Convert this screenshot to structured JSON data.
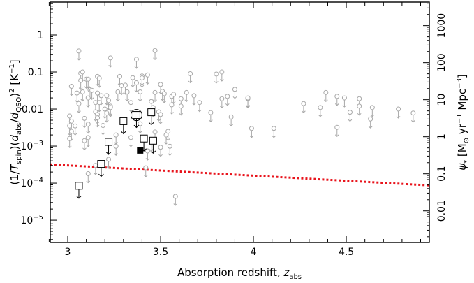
{
  "chart_data": {
    "type": "scatter",
    "title": "",
    "xlabel": [
      {
        "t": "Absorption redshift, "
      },
      {
        "t": "z",
        "s": "it"
      },
      {
        "t": "abs",
        "s": "sub"
      }
    ],
    "ylabel": [
      {
        "t": "(1/"
      },
      {
        "t": "T",
        "s": "it"
      },
      {
        "t": "spin",
        "s": "sub"
      },
      {
        "t": ")("
      },
      {
        "t": "d",
        "s": "it"
      },
      {
        "t": "abs",
        "s": "sub"
      },
      {
        "t": "/"
      },
      {
        "t": "d",
        "s": "it"
      },
      {
        "t": "QSO",
        "s": "sub"
      },
      {
        "t": ")"
      },
      {
        "t": "2",
        "s": "sup"
      },
      {
        "t": "  [K"
      },
      {
        "t": "−1",
        "s": "sup"
      },
      {
        "t": "]"
      }
    ],
    "ylabel_right": [
      {
        "t": "ψ",
        "s": "it"
      },
      {
        "t": "*",
        "s": "sub"
      },
      {
        "t": " [M"
      },
      {
        "t": "⊙",
        "s": "sub"
      },
      {
        "t": " yr"
      },
      {
        "t": "−1",
        "s": "sup"
      },
      {
        "t": " Mpc"
      },
      {
        "t": "−3",
        "s": "sup"
      },
      {
        "t": "]"
      }
    ],
    "xlim": [
      2.906,
      4.947
    ],
    "ylim": [
      2.5e-06,
      7.7
    ],
    "yscale": "log",
    "ylim_right": [
      0.0014,
      4300
    ],
    "yscale_right": "log",
    "grid": false,
    "x_ticks": [
      {
        "v": 3,
        "label": "3"
      },
      {
        "v": 3.5,
        "label": "3.5"
      },
      {
        "v": 4,
        "label": "4"
      },
      {
        "v": 4.5,
        "label": "4.5"
      }
    ],
    "y_ticks": [
      {
        "v": 1,
        "label": "1"
      },
      {
        "v": 0.1,
        "label": "0.1"
      },
      {
        "v": 0.01,
        "label": "0.01"
      },
      {
        "v": 0.001,
        "base": "10",
        "exp": "−3"
      },
      {
        "v": 0.0001,
        "base": "10",
        "exp": "−4"
      },
      {
        "v": 1e-05,
        "base": "10",
        "exp": "−5"
      }
    ],
    "y_ticks_right": [
      {
        "v": 1000,
        "label": "1000"
      },
      {
        "v": 100,
        "label": "100"
      },
      {
        "v": 10,
        "label": "10"
      },
      {
        "v": 1,
        "label": "1"
      },
      {
        "v": 0.1,
        "label": "0.1"
      },
      {
        "v": 0.01,
        "label": "0.01"
      }
    ],
    "right_axis_factor": 560,
    "series": [
      {
        "marker": "open-circle",
        "upper_limit": true,
        "color": "#a8a8a8",
        "points": [
          [
            3.06,
            0.37
          ],
          [
            3.23,
            0.24
          ],
          [
            3.37,
            0.22
          ],
          [
            3.47,
            0.38
          ],
          [
            3.02,
            0.041
          ],
          [
            3.07,
            0.092
          ],
          [
            3.08,
            0.1
          ],
          [
            3.07,
            0.059
          ],
          [
            3.1,
            0.064
          ],
          [
            3.11,
            0.064
          ],
          [
            3.05,
            0.027
          ],
          [
            3.08,
            0.029
          ],
          [
            3.06,
            0.014
          ],
          [
            3.12,
            0.033
          ],
          [
            3.13,
            0.032
          ],
          [
            3.11,
            0.02
          ],
          [
            3.16,
            0.076
          ],
          [
            3.17,
            0.068
          ],
          [
            3.16,
            0.027
          ],
          [
            3.18,
            0.023
          ],
          [
            3.21,
            0.023
          ],
          [
            3.15,
            0.015
          ],
          [
            3.17,
            0.015
          ],
          [
            3.22,
            0.017
          ],
          [
            3.23,
            0.012
          ],
          [
            3.2,
            0.01
          ],
          [
            3.15,
            0.0084
          ],
          [
            3.16,
            0.0071
          ],
          [
            3.16,
            0.0058
          ],
          [
            3.21,
            0.0078
          ],
          [
            3.23,
            0.011
          ],
          [
            3.28,
            0.076
          ],
          [
            3.29,
            0.043
          ],
          [
            3.31,
            0.044
          ],
          [
            3.32,
            0.029
          ],
          [
            3.27,
            0.029
          ],
          [
            3.34,
            0.015
          ],
          [
            3.35,
            0.07
          ],
          [
            3.37,
            0.051
          ],
          [
            3.4,
            0.078
          ],
          [
            3.4,
            0.069
          ],
          [
            3.43,
            0.083
          ],
          [
            3.39,
            0.029
          ],
          [
            3.45,
            0.016
          ],
          [
            3.47,
            0.028
          ],
          [
            3.5,
            0.046
          ],
          [
            3.51,
            0.03
          ],
          [
            3.52,
            0.026
          ],
          [
            3.56,
            0.022
          ],
          [
            3.57,
            0.025
          ],
          [
            3.56,
            0.013
          ],
          [
            3.61,
            0.019
          ],
          [
            3.61,
            0.012
          ],
          [
            3.64,
            0.028
          ],
          [
            3.66,
            0.09
          ],
          [
            3.68,
            0.023
          ],
          [
            3.71,
            0.015
          ],
          [
            3.77,
            0.008
          ],
          [
            3.8,
            0.088
          ],
          [
            3.83,
            0.1
          ],
          [
            3.83,
            0.019
          ],
          [
            3.86,
            0.022
          ],
          [
            3.9,
            0.034
          ],
          [
            3.88,
            0.0061
          ],
          [
            3.97,
            0.019
          ],
          [
            3.01,
            0.0065
          ],
          [
            3.02,
            0.0047
          ],
          [
            3.01,
            0.0035
          ],
          [
            3.02,
            0.0025
          ],
          [
            3.04,
            0.0035
          ],
          [
            3.01,
            0.0016
          ],
          [
            3.09,
            0.0056
          ],
          [
            3.09,
            0.0014
          ],
          [
            3.11,
            0.0039
          ],
          [
            3.11,
            0.0017
          ],
          [
            3.19,
            0.0036
          ],
          [
            3.26,
            0.002
          ],
          [
            3.26,
            0.00099
          ],
          [
            3.22,
            0.00044
          ],
          [
            3.34,
            0.0017
          ],
          [
            3.39,
            0.004
          ],
          [
            3.49,
            0.0084
          ],
          [
            3.5,
            0.0071
          ],
          [
            3.46,
            0.011
          ],
          [
            3.54,
            0.0025
          ],
          [
            3.53,
            0.002
          ],
          [
            3.55,
            0.00099
          ],
          [
            3.5,
            0.00093
          ],
          [
            3.43,
            0.00074
          ],
          [
            3.47,
            0.0024
          ],
          [
            3.45,
            0.0013
          ],
          [
            3.11,
            0.00018
          ],
          [
            3.15,
            0.0003
          ],
          [
            3.42,
            0.00026
          ],
          [
            3.58,
            4.4e-05
          ],
          [
            3.97,
            0.02
          ],
          [
            4.27,
            0.014
          ],
          [
            4.36,
            0.011
          ],
          [
            4.39,
            0.028
          ],
          [
            4.45,
            0.022
          ],
          [
            4.49,
            0.02
          ],
          [
            4.57,
            0.019
          ],
          [
            4.57,
            0.012
          ],
          [
            4.52,
            0.0082
          ],
          [
            4.64,
            0.011
          ],
          [
            4.63,
            0.0054
          ],
          [
            4.78,
            0.01
          ],
          [
            4.86,
            0.0078
          ],
          [
            3.99,
            0.003
          ],
          [
            4.11,
            0.003
          ],
          [
            4.45,
            0.0032
          ]
        ]
      },
      {
        "marker": "open-square",
        "upper_limit": true,
        "color": "#000000",
        "points": [
          [
            3.06,
            8.5e-05
          ],
          [
            3.18,
            0.00033
          ],
          [
            3.22,
            0.0013
          ],
          [
            3.3,
            0.0047
          ],
          [
            3.37,
            0.0069
          ],
          [
            3.45,
            0.0082
          ],
          [
            3.41,
            0.0016
          ],
          [
            3.46,
            0.0014
          ]
        ]
      },
      {
        "marker": "filled-square",
        "upper_limit": false,
        "color": "#000000",
        "points": [
          [
            3.39,
            0.00076
          ]
        ]
      },
      {
        "marker": "large-open-circle",
        "upper_limit": false,
        "color": "#000000",
        "points": [
          [
            3.37,
            0.0069
          ]
        ]
      }
    ],
    "lines": [
      {
        "style": "dotted",
        "color": "#e8141c",
        "points": [
          [
            2.906,
            0.00032
          ],
          [
            4.947,
            8.7e-05
          ]
        ]
      }
    ]
  }
}
